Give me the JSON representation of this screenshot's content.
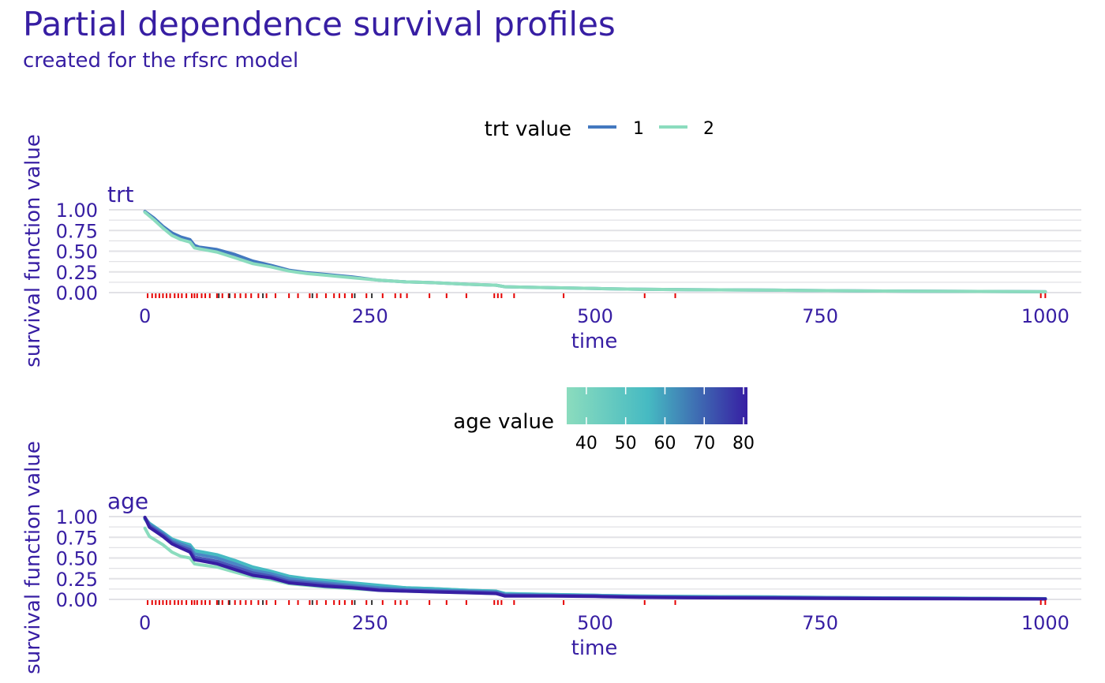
{
  "header": {
    "title": "Partial dependence survival profiles",
    "subtitle": "created for the rfsrc model"
  },
  "colors": {
    "text": "#371ea3",
    "grid": "#e2e2e6",
    "rug_event": "#e60000",
    "rug_censored": "#333333",
    "trt_1": "#4378bf",
    "trt_2": "#8bdcbe",
    "age_low": "#8bdcbe",
    "age_mid": "#46bac2",
    "age_high": "#371ea3"
  },
  "chart_data": [
    {
      "type": "line",
      "panel_label": "trt",
      "xlabel": "time",
      "ylabel": "survival function value",
      "xlim": [
        -40,
        1040
      ],
      "ylim": [
        0,
        1
      ],
      "x_ticks": [
        0,
        250,
        500,
        750,
        1000
      ],
      "x_tick_labels": [
        "0",
        "250",
        "500",
        "750",
        "1000"
      ],
      "y_ticks": [
        0,
        0.25,
        0.5,
        0.75,
        1
      ],
      "y_tick_labels": [
        "0.00",
        "0.25",
        "0.50",
        "0.75",
        "1.00"
      ],
      "grid": true,
      "legend": {
        "position": "top",
        "title": "trt value",
        "entries": [
          {
            "label": "1",
            "color": "#4378bf"
          },
          {
            "label": "2",
            "color": "#8bdcbe"
          }
        ]
      },
      "series": [
        {
          "name": "1",
          "color": "#4378bf",
          "x": [
            0,
            10,
            20,
            30,
            40,
            50,
            55,
            60,
            80,
            100,
            120,
            140,
            160,
            180,
            200,
            230,
            260,
            290,
            320,
            360,
            390,
            400,
            450,
            500,
            550,
            600,
            700,
            800,
            900,
            1000
          ],
          "y": [
            0.98,
            0.9,
            0.8,
            0.72,
            0.67,
            0.64,
            0.57,
            0.55,
            0.52,
            0.46,
            0.38,
            0.33,
            0.27,
            0.24,
            0.22,
            0.19,
            0.15,
            0.13,
            0.12,
            0.1,
            0.09,
            0.07,
            0.06,
            0.05,
            0.04,
            0.035,
            0.03,
            0.02,
            0.015,
            0.01
          ]
        },
        {
          "name": "2",
          "color": "#8bdcbe",
          "x": [
            0,
            10,
            20,
            30,
            40,
            50,
            55,
            60,
            80,
            100,
            120,
            140,
            160,
            180,
            200,
            230,
            260,
            290,
            320,
            360,
            390,
            400,
            450,
            500,
            550,
            600,
            700,
            800,
            900,
            1000
          ],
          "y": [
            0.97,
            0.88,
            0.78,
            0.69,
            0.64,
            0.61,
            0.54,
            0.53,
            0.49,
            0.42,
            0.35,
            0.31,
            0.26,
            0.23,
            0.21,
            0.18,
            0.15,
            0.13,
            0.12,
            0.1,
            0.09,
            0.07,
            0.06,
            0.05,
            0.04,
            0.035,
            0.03,
            0.02,
            0.015,
            0.01
          ]
        }
      ],
      "rug_events": [
        3,
        8,
        12,
        16,
        20,
        24,
        28,
        33,
        37,
        41,
        46,
        52,
        55,
        58,
        63,
        67,
        72,
        80,
        86,
        93,
        100,
        106,
        112,
        118,
        126,
        135,
        145,
        160,
        170,
        183,
        191,
        201,
        210,
        216,
        222,
        230,
        246,
        264,
        278,
        284,
        291,
        316,
        335,
        357,
        388,
        392,
        396,
        410,
        465,
        555,
        589,
        995,
        1000
      ],
      "rug_censored": [
        82,
        94,
        131,
        186,
        233,
        252
      ]
    },
    {
      "type": "line",
      "panel_label": "age",
      "xlabel": "time",
      "ylabel": "survival function value",
      "xlim": [
        -40,
        1040
      ],
      "ylim": [
        0,
        1
      ],
      "x_ticks": [
        0,
        250,
        500,
        750,
        1000
      ],
      "x_tick_labels": [
        "0",
        "250",
        "500",
        "750",
        "1000"
      ],
      "y_ticks": [
        0,
        0.25,
        0.5,
        0.75,
        1
      ],
      "y_tick_labels": [
        "0.00",
        "0.25",
        "0.50",
        "0.75",
        "1.00"
      ],
      "grid": true,
      "legend": {
        "position": "top",
        "title": "age value",
        "type": "colorbar",
        "range": [
          35,
          81
        ],
        "breaks": [
          40,
          50,
          60,
          70,
          80
        ],
        "break_labels": [
          "40",
          "50",
          "60",
          "70",
          "80"
        ]
      },
      "series": [
        {
          "age": 35,
          "color": "#8bdcbe",
          "x": [
            0,
            5,
            20,
            30,
            40,
            50,
            55,
            60,
            80,
            100,
            120,
            140,
            160,
            180,
            200,
            230,
            260,
            290,
            320,
            360,
            390,
            400,
            450,
            500,
            550,
            600,
            700,
            800,
            900,
            1000
          ],
          "y": [
            0.86,
            0.76,
            0.66,
            0.57,
            0.52,
            0.5,
            0.43,
            0.42,
            0.39,
            0.33,
            0.27,
            0.24,
            0.19,
            0.17,
            0.15,
            0.13,
            0.11,
            0.1,
            0.09,
            0.08,
            0.07,
            0.05,
            0.045,
            0.04,
            0.03,
            0.025,
            0.02,
            0.015,
            0.01,
            0.01
          ]
        },
        {
          "age": 50,
          "color": "#5fc9c4",
          "x": [
            0,
            5,
            20,
            30,
            40,
            50,
            55,
            60,
            80,
            100,
            120,
            140,
            160,
            180,
            200,
            230,
            260,
            290,
            320,
            360,
            390,
            400,
            450,
            500,
            550,
            600,
            700,
            800,
            900,
            1000
          ],
          "y": [
            0.97,
            0.9,
            0.79,
            0.71,
            0.67,
            0.64,
            0.57,
            0.56,
            0.52,
            0.45,
            0.37,
            0.33,
            0.27,
            0.24,
            0.22,
            0.19,
            0.16,
            0.14,
            0.13,
            0.11,
            0.1,
            0.07,
            0.06,
            0.05,
            0.04,
            0.035,
            0.03,
            0.02,
            0.015,
            0.01
          ]
        },
        {
          "age": 58,
          "color": "#46bac2",
          "x": [
            0,
            5,
            20,
            30,
            40,
            50,
            55,
            60,
            80,
            100,
            120,
            140,
            160,
            180,
            200,
            230,
            260,
            290,
            320,
            360,
            390,
            400,
            450,
            500,
            550,
            600,
            700,
            800,
            900,
            1000
          ],
          "y": [
            0.98,
            0.92,
            0.81,
            0.73,
            0.69,
            0.66,
            0.59,
            0.58,
            0.54,
            0.47,
            0.39,
            0.34,
            0.28,
            0.25,
            0.23,
            0.2,
            0.17,
            0.14,
            0.13,
            0.11,
            0.1,
            0.07,
            0.06,
            0.05,
            0.04,
            0.035,
            0.03,
            0.02,
            0.015,
            0.01
          ]
        },
        {
          "age": 66,
          "color": "#4a86c5",
          "x": [
            0,
            5,
            20,
            30,
            40,
            50,
            55,
            60,
            80,
            100,
            120,
            140,
            160,
            180,
            200,
            230,
            260,
            290,
            320,
            360,
            390,
            400,
            450,
            500,
            550,
            600,
            700,
            800,
            900,
            1000
          ],
          "y": [
            0.99,
            0.91,
            0.8,
            0.71,
            0.67,
            0.63,
            0.55,
            0.54,
            0.5,
            0.43,
            0.35,
            0.31,
            0.25,
            0.22,
            0.2,
            0.17,
            0.14,
            0.12,
            0.11,
            0.1,
            0.09,
            0.06,
            0.05,
            0.045,
            0.035,
            0.03,
            0.025,
            0.018,
            0.012,
            0.008
          ]
        },
        {
          "age": 74,
          "color": "#4a56b8",
          "x": [
            0,
            5,
            20,
            30,
            40,
            50,
            55,
            60,
            80,
            100,
            120,
            140,
            160,
            180,
            200,
            230,
            260,
            290,
            320,
            360,
            390,
            400,
            450,
            500,
            550,
            600,
            700,
            800,
            900,
            1000
          ],
          "y": [
            0.99,
            0.89,
            0.78,
            0.69,
            0.64,
            0.6,
            0.51,
            0.5,
            0.46,
            0.39,
            0.32,
            0.28,
            0.22,
            0.2,
            0.18,
            0.15,
            0.12,
            0.11,
            0.1,
            0.09,
            0.08,
            0.05,
            0.045,
            0.04,
            0.03,
            0.025,
            0.02,
            0.015,
            0.01,
            0.006
          ]
        },
        {
          "age": 81,
          "color": "#371ea3",
          "x": [
            0,
            5,
            20,
            30,
            40,
            50,
            55,
            60,
            80,
            100,
            120,
            140,
            160,
            180,
            200,
            230,
            260,
            290,
            320,
            360,
            390,
            400,
            450,
            500,
            550,
            600,
            700,
            800,
            900,
            1000
          ],
          "y": [
            0.99,
            0.87,
            0.76,
            0.67,
            0.62,
            0.57,
            0.48,
            0.47,
            0.43,
            0.36,
            0.29,
            0.26,
            0.2,
            0.18,
            0.16,
            0.14,
            0.11,
            0.1,
            0.09,
            0.08,
            0.07,
            0.04,
            0.04,
            0.035,
            0.025,
            0.02,
            0.015,
            0.01,
            0.008,
            0.005
          ]
        }
      ],
      "rug_events": [
        3,
        8,
        12,
        16,
        20,
        24,
        28,
        33,
        37,
        41,
        46,
        52,
        55,
        58,
        63,
        67,
        72,
        80,
        86,
        93,
        100,
        106,
        112,
        118,
        126,
        135,
        145,
        160,
        170,
        183,
        191,
        201,
        210,
        216,
        222,
        230,
        246,
        264,
        278,
        284,
        291,
        316,
        335,
        357,
        388,
        392,
        396,
        410,
        465,
        555,
        589,
        995,
        1000
      ],
      "rug_censored": [
        82,
        94,
        131,
        186,
        233,
        252
      ]
    }
  ]
}
